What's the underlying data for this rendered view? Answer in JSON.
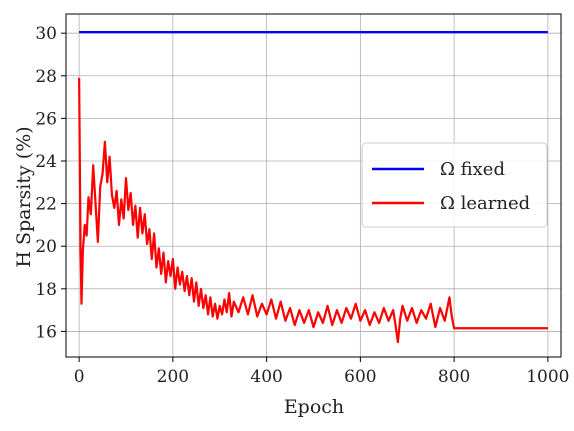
{
  "chart_data": {
    "type": "line",
    "xlabel": "Epoch",
    "ylabel": "H Sparsity (%)",
    "xlim": [
      -28,
      1028
    ],
    "ylim": [
      14.8,
      30.9
    ],
    "x_ticks": [
      0,
      200,
      400,
      600,
      800,
      1000
    ],
    "y_ticks": [
      16,
      18,
      20,
      22,
      24,
      26,
      28,
      30
    ],
    "grid": true,
    "legend_position": "center-right",
    "series": [
      {
        "name": "Ω fixed",
        "color": "#0000ff",
        "points": [
          [
            0,
            30.05
          ],
          [
            1000,
            30.05
          ]
        ]
      },
      {
        "name": "Ω learned",
        "color": "#ff0000",
        "points": [
          [
            0,
            27.9
          ],
          [
            3,
            20.0
          ],
          [
            5,
            17.3
          ],
          [
            8,
            19.8
          ],
          [
            12,
            21.0
          ],
          [
            16,
            20.5
          ],
          [
            20,
            22.3
          ],
          [
            25,
            21.5
          ],
          [
            30,
            23.8
          ],
          [
            35,
            22.0
          ],
          [
            40,
            20.2
          ],
          [
            45,
            22.8
          ],
          [
            50,
            23.4
          ],
          [
            55,
            24.9
          ],
          [
            60,
            23.0
          ],
          [
            65,
            24.2
          ],
          [
            70,
            22.4
          ],
          [
            75,
            21.8
          ],
          [
            80,
            22.6
          ],
          [
            85,
            21.0
          ],
          [
            90,
            22.2
          ],
          [
            95,
            21.3
          ],
          [
            100,
            23.2
          ],
          [
            105,
            21.7
          ],
          [
            110,
            22.5
          ],
          [
            115,
            21.0
          ],
          [
            120,
            21.9
          ],
          [
            125,
            20.4
          ],
          [
            130,
            21.8
          ],
          [
            135,
            20.6
          ],
          [
            140,
            21.5
          ],
          [
            145,
            20.1
          ],
          [
            150,
            20.8
          ],
          [
            155,
            19.4
          ],
          [
            160,
            20.6
          ],
          [
            165,
            19.0
          ],
          [
            170,
            19.9
          ],
          [
            175,
            18.7
          ],
          [
            180,
            19.7
          ],
          [
            185,
            18.3
          ],
          [
            190,
            19.3
          ],
          [
            195,
            18.6
          ],
          [
            200,
            19.4
          ],
          [
            205,
            18.0
          ],
          [
            210,
            19.0
          ],
          [
            215,
            18.2
          ],
          [
            220,
            18.8
          ],
          [
            225,
            17.9
          ],
          [
            230,
            18.6
          ],
          [
            235,
            17.7
          ],
          [
            240,
            18.5
          ],
          [
            245,
            17.4
          ],
          [
            250,
            18.3
          ],
          [
            255,
            17.2
          ],
          [
            260,
            18.0
          ],
          [
            265,
            17.1
          ],
          [
            270,
            17.7
          ],
          [
            275,
            16.8
          ],
          [
            280,
            17.6
          ],
          [
            285,
            16.7
          ],
          [
            290,
            17.3
          ],
          [
            295,
            16.6
          ],
          [
            300,
            17.2
          ],
          [
            305,
            16.8
          ],
          [
            310,
            17.5
          ],
          [
            315,
            16.9
          ],
          [
            320,
            17.8
          ],
          [
            325,
            16.7
          ],
          [
            330,
            17.4
          ],
          [
            340,
            16.9
          ],
          [
            350,
            17.6
          ],
          [
            360,
            16.8
          ],
          [
            370,
            17.7
          ],
          [
            380,
            16.7
          ],
          [
            390,
            17.3
          ],
          [
            400,
            16.8
          ],
          [
            410,
            17.5
          ],
          [
            420,
            16.6
          ],
          [
            430,
            17.4
          ],
          [
            440,
            16.5
          ],
          [
            450,
            17.1
          ],
          [
            460,
            16.3
          ],
          [
            470,
            17.0
          ],
          [
            480,
            16.4
          ],
          [
            490,
            17.0
          ],
          [
            500,
            16.2
          ],
          [
            510,
            16.9
          ],
          [
            520,
            16.4
          ],
          [
            530,
            17.2
          ],
          [
            540,
            16.3
          ],
          [
            550,
            17.0
          ],
          [
            560,
            16.4
          ],
          [
            570,
            17.1
          ],
          [
            580,
            16.6
          ],
          [
            590,
            17.3
          ],
          [
            600,
            16.5
          ],
          [
            610,
            17.0
          ],
          [
            620,
            16.3
          ],
          [
            630,
            16.9
          ],
          [
            640,
            16.4
          ],
          [
            650,
            17.1
          ],
          [
            660,
            16.5
          ],
          [
            670,
            17.0
          ],
          [
            675,
            16.3
          ],
          [
            680,
            15.5
          ],
          [
            685,
            16.6
          ],
          [
            690,
            17.2
          ],
          [
            700,
            16.5
          ],
          [
            710,
            17.1
          ],
          [
            720,
            16.4
          ],
          [
            730,
            17.0
          ],
          [
            740,
            16.6
          ],
          [
            750,
            17.3
          ],
          [
            760,
            16.2
          ],
          [
            770,
            17.1
          ],
          [
            780,
            16.5
          ],
          [
            790,
            17.6
          ],
          [
            795,
            16.7
          ],
          [
            800,
            16.15
          ],
          [
            1000,
            16.15
          ]
        ]
      }
    ]
  }
}
